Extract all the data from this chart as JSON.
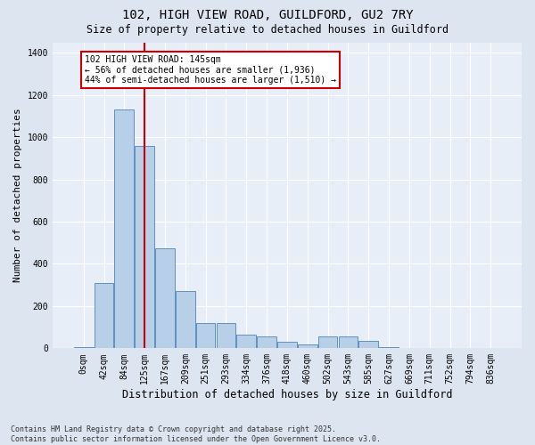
{
  "title": "102, HIGH VIEW ROAD, GUILDFORD, GU2 7RY",
  "subtitle": "Size of property relative to detached houses in Guildford",
  "xlabel": "Distribution of detached houses by size in Guildford",
  "ylabel": "Number of detached properties",
  "bins": [
    "0sqm",
    "42sqm",
    "84sqm",
    "125sqm",
    "167sqm",
    "209sqm",
    "251sqm",
    "293sqm",
    "334sqm",
    "376sqm",
    "418sqm",
    "460sqm",
    "502sqm",
    "543sqm",
    "585sqm",
    "627sqm",
    "669sqm",
    "711sqm",
    "752sqm",
    "794sqm",
    "836sqm"
  ],
  "values": [
    5,
    310,
    1130,
    960,
    475,
    270,
    120,
    120,
    65,
    55,
    30,
    20,
    55,
    55,
    35,
    5,
    0,
    0,
    0,
    0,
    0
  ],
  "bar_color": "#b8cfe8",
  "bar_edge_color": "#6090c0",
  "vline_color": "#cc0000",
  "annotation_text": "102 HIGH VIEW ROAD: 145sqm\n← 56% of detached houses are smaller (1,936)\n44% of semi-detached houses are larger (1,510) →",
  "annotation_box_facecolor": "#ffffff",
  "annotation_box_edgecolor": "#cc0000",
  "ylim": [
    0,
    1450
  ],
  "yticks": [
    0,
    200,
    400,
    600,
    800,
    1000,
    1200,
    1400
  ],
  "footer_text": "Contains HM Land Registry data © Crown copyright and database right 2025.\nContains public sector information licensed under the Open Government Licence v3.0.",
  "bg_color": "#dde5f0",
  "plot_bg_color": "#e8eef8",
  "grid_color": "#ffffff",
  "title_fontsize": 10,
  "subtitle_fontsize": 8.5,
  "ylabel_fontsize": 8,
  "xlabel_fontsize": 8.5,
  "tick_fontsize": 7,
  "annot_fontsize": 7,
  "footer_fontsize": 6
}
